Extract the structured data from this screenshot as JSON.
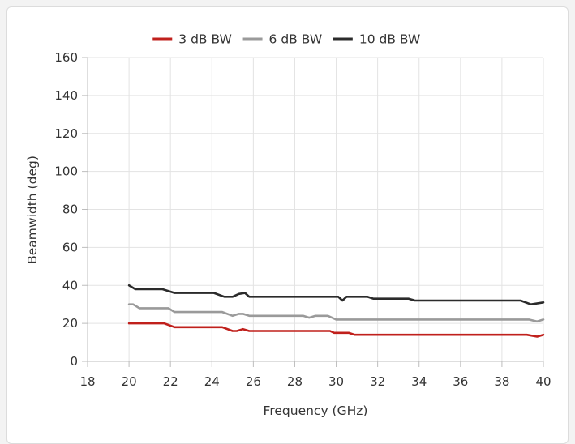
{
  "chart_data": {
    "type": "line",
    "title": "",
    "xlabel": "Frequency (GHz)",
    "ylabel": "Beamwidth (deg)",
    "xlim": [
      18,
      40
    ],
    "ylim": [
      0,
      160
    ],
    "xticks": [
      "18",
      "20",
      "22",
      "24",
      "26",
      "28",
      "30",
      "32",
      "34",
      "36",
      "38",
      "40"
    ],
    "yticks": [
      "0",
      "20",
      "40",
      "60",
      "80",
      "100",
      "120",
      "140",
      "160"
    ],
    "grid": true,
    "legend_position": "top",
    "series": [
      {
        "name": "3 dB BW",
        "color": "#c0201c",
        "x": [
          20,
          21.7,
          22.2,
          24.5,
          25.0,
          25.2,
          25.5,
          25.8,
          29.7,
          29.9,
          30.6,
          30.9,
          39.2,
          39.7,
          40
        ],
        "y": [
          20,
          20,
          18,
          18,
          16,
          16,
          17,
          16,
          16,
          15,
          15,
          14,
          14,
          13,
          14
        ]
      },
      {
        "name": "6 dB BW",
        "color": "#9a9a9a",
        "x": [
          20,
          20.2,
          20.5,
          21.9,
          22.2,
          24.5,
          25.0,
          25.3,
          25.5,
          25.8,
          28.4,
          28.7,
          29.0,
          29.6,
          30.0,
          30.3,
          39.3,
          39.7,
          40
        ],
        "y": [
          30,
          30,
          28,
          28,
          26,
          26,
          24,
          25,
          25,
          24,
          24,
          23,
          24,
          24,
          22,
          22,
          22,
          21,
          22
        ]
      },
      {
        "name": "10 dB BW",
        "color": "#2b2b2b",
        "x": [
          20,
          20.3,
          21.6,
          22.2,
          24.1,
          24.6,
          25.0,
          25.3,
          25.6,
          25.8,
          30.1,
          30.3,
          30.5,
          31.5,
          31.8,
          33.5,
          33.8,
          38.9,
          39.4,
          40
        ],
        "y": [
          40,
          38,
          38,
          36,
          36,
          34,
          34,
          35.5,
          36,
          34,
          34,
          32,
          34,
          34,
          33,
          33,
          32,
          32,
          30,
          31
        ]
      }
    ]
  }
}
